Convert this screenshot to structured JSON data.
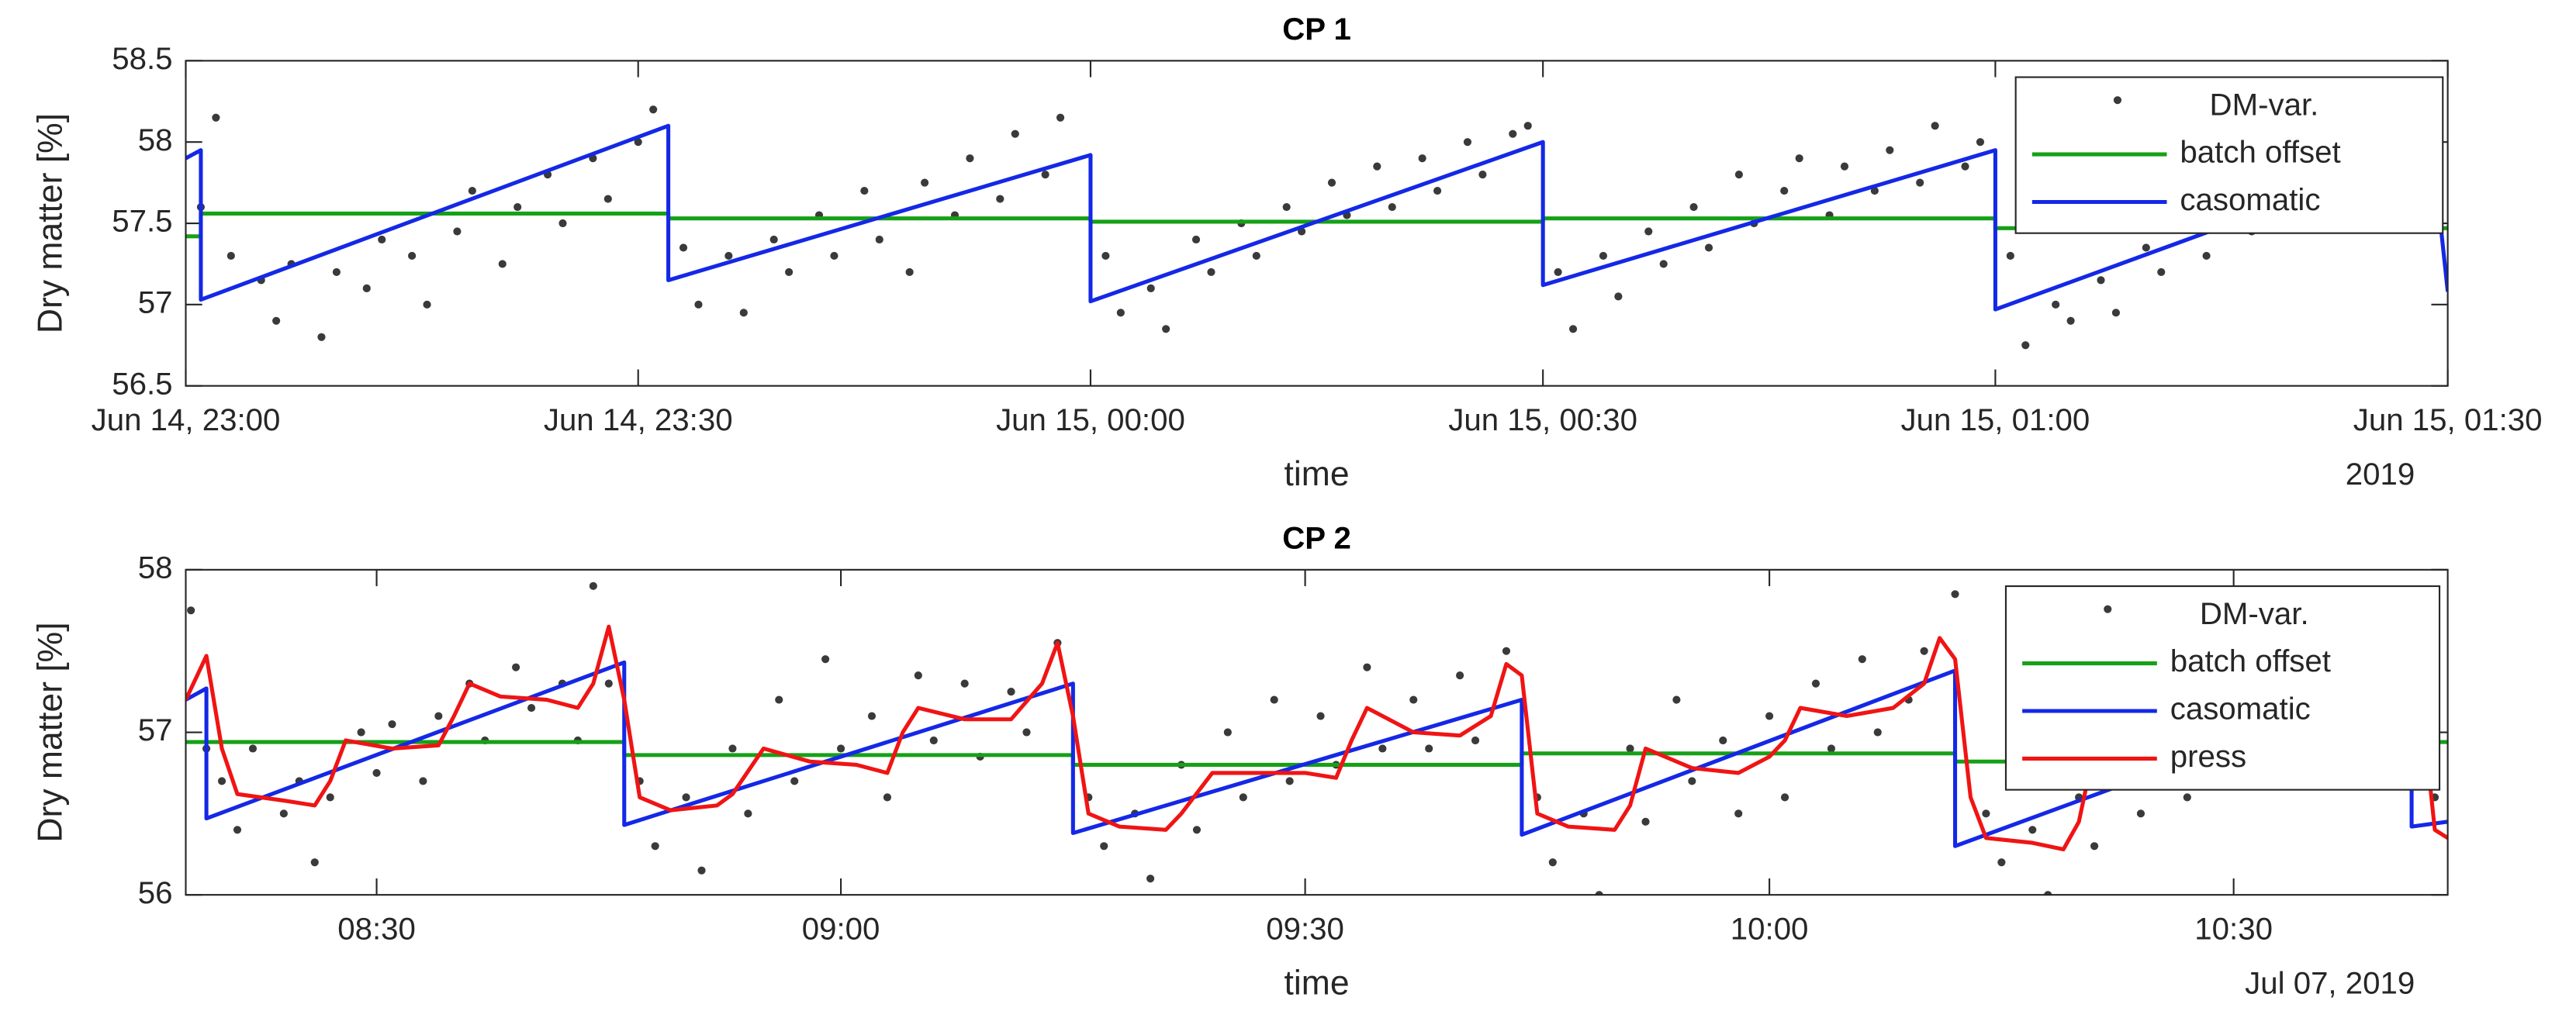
{
  "chart_data": [
    {
      "type": "timeseries",
      "title": "CP 1",
      "xlabel": "time",
      "xsublabel": "2019",
      "ylabel": "Dry matter [%]",
      "xlim": [
        "2019-06-14T23:00",
        "2019-06-15T01:30"
      ],
      "xticks": [
        {
          "value": "2019-06-14T23:00",
          "label": "Jun 14, 23:00"
        },
        {
          "value": "2019-06-14T23:30",
          "label": "Jun 14, 23:30"
        },
        {
          "value": "2019-06-15T00:00",
          "label": "Jun 15, 00:00"
        },
        {
          "value": "2019-06-15T00:30",
          "label": "Jun 15, 00:30"
        },
        {
          "value": "2019-06-15T01:00",
          "label": "Jun 15, 01:00"
        },
        {
          "value": "2019-06-15T01:30",
          "label": "Jun 15, 01:30"
        }
      ],
      "ylim": [
        56.5,
        58.5
      ],
      "yticks": [
        56.5,
        57,
        57.5,
        58,
        58.5
      ],
      "grid": false,
      "legend": "northeast",
      "series": [
        {
          "name": "DM-var.",
          "marker": "dot",
          "color": "#3a3a3a",
          "x": [
            "2019-06-14T23:01",
            "2019-06-14T23:02",
            "2019-06-14T23:03",
            "2019-06-14T23:05",
            "2019-06-14T23:06",
            "2019-06-14T23:07",
            "2019-06-14T23:09",
            "2019-06-14T23:10",
            "2019-06-14T23:12",
            "2019-06-14T23:13",
            "2019-06-14T23:15",
            "2019-06-14T23:16",
            "2019-06-14T23:18",
            "2019-06-14T23:19",
            "2019-06-14T23:21",
            "2019-06-14T23:22",
            "2019-06-14T23:24",
            "2019-06-14T23:25",
            "2019-06-14T23:27",
            "2019-06-14T23:28",
            "2019-06-14T23:30",
            "2019-06-14T23:31",
            "2019-06-14T23:33",
            "2019-06-14T23:34",
            "2019-06-14T23:36",
            "2019-06-14T23:37",
            "2019-06-14T23:39",
            "2019-06-14T23:40",
            "2019-06-14T23:42",
            "2019-06-14T23:43",
            "2019-06-14T23:45",
            "2019-06-14T23:46",
            "2019-06-14T23:48",
            "2019-06-14T23:49",
            "2019-06-14T23:51",
            "2019-06-14T23:52",
            "2019-06-14T23:54",
            "2019-06-14T23:55",
            "2019-06-14T23:57",
            "2019-06-14T23:58",
            "2019-06-15T00:01",
            "2019-06-15T00:02",
            "2019-06-15T00:04",
            "2019-06-15T00:05",
            "2019-06-15T00:07",
            "2019-06-15T00:08",
            "2019-06-15T00:10",
            "2019-06-15T00:11",
            "2019-06-15T00:13",
            "2019-06-15T00:14",
            "2019-06-15T00:16",
            "2019-06-15T00:17",
            "2019-06-15T00:19",
            "2019-06-15T00:20",
            "2019-06-15T00:22",
            "2019-06-15T00:23",
            "2019-06-15T00:25",
            "2019-06-15T00:26",
            "2019-06-15T00:28",
            "2019-06-15T00:29",
            "2019-06-15T00:31",
            "2019-06-15T00:32",
            "2019-06-15T00:34",
            "2019-06-15T00:35",
            "2019-06-15T00:37",
            "2019-06-15T00:38",
            "2019-06-15T00:40",
            "2019-06-15T00:41",
            "2019-06-15T00:43",
            "2019-06-15T00:44",
            "2019-06-15T00:46",
            "2019-06-15T00:47",
            "2019-06-15T00:49",
            "2019-06-15T00:50",
            "2019-06-15T00:52",
            "2019-06-15T00:53",
            "2019-06-15T00:55",
            "2019-06-15T00:56",
            "2019-06-15T00:58",
            "2019-06-15T00:59",
            "2019-06-15T01:01",
            "2019-06-15T01:02",
            "2019-06-15T01:04",
            "2019-06-15T01:05",
            "2019-06-15T01:07",
            "2019-06-15T01:08",
            "2019-06-15T01:10",
            "2019-06-15T01:11",
            "2019-06-15T01:13",
            "2019-06-15T01:14",
            "2019-06-15T01:16",
            "2019-06-15T01:17",
            "2019-06-15T01:19",
            "2019-06-15T01:20",
            "2019-06-15T01:22",
            "2019-06-15T01:23",
            "2019-06-15T01:25",
            "2019-06-15T01:26",
            "2019-06-15T01:28",
            "2019-06-15T01:29"
          ],
          "values": [
            57.6,
            58.15,
            57.3,
            57.15,
            56.9,
            57.25,
            56.8,
            57.2,
            57.1,
            57.4,
            57.3,
            57.0,
            57.45,
            57.7,
            57.25,
            57.6,
            57.8,
            57.5,
            57.9,
            57.65,
            58.0,
            58.2,
            57.35,
            57.0,
            57.3,
            56.95,
            57.4,
            57.2,
            57.55,
            57.3,
            57.7,
            57.4,
            57.2,
            57.75,
            57.55,
            57.9,
            57.65,
            58.05,
            57.8,
            58.15,
            57.3,
            56.95,
            57.1,
            56.85,
            57.4,
            57.2,
            57.5,
            57.3,
            57.6,
            57.45,
            57.75,
            57.55,
            57.85,
            57.6,
            57.9,
            57.7,
            58.0,
            57.8,
            58.05,
            58.1,
            57.2,
            56.85,
            57.3,
            57.05,
            57.45,
            57.25,
            57.6,
            57.35,
            57.8,
            57.5,
            57.7,
            57.9,
            57.55,
            57.85,
            57.7,
            57.95,
            57.75,
            58.1,
            57.85,
            58.0,
            57.3,
            56.75,
            57.0,
            56.9,
            57.15,
            56.95,
            57.35,
            57.2,
            57.5,
            57.3,
            57.6,
            57.45,
            57.7,
            57.5,
            57.9,
            57.75,
            58.05,
            57.9,
            58.1,
            57.55
          ]
        },
        {
          "name": "batch offset",
          "marker": "line",
          "color": "#16a016",
          "x": [
            "2019-06-14T23:00",
            "2019-06-14T23:01",
            "2019-06-14T23:01",
            "2019-06-14T23:32",
            "2019-06-14T23:32",
            "2019-06-15T00:00",
            "2019-06-15T00:00",
            "2019-06-15T00:30",
            "2019-06-15T00:30",
            "2019-06-15T01:00",
            "2019-06-15T01:00",
            "2019-06-15T01:30"
          ],
          "values": [
            57.42,
            57.42,
            57.56,
            57.56,
            57.53,
            57.53,
            57.51,
            57.51,
            57.53,
            57.53,
            57.47,
            57.47
          ]
        },
        {
          "name": "casomatic",
          "marker": "line",
          "color": "#1428e6",
          "x": [
            "2019-06-14T23:00",
            "2019-06-14T23:01",
            "2019-06-14T23:01",
            "2019-06-14T23:32",
            "2019-06-14T23:32",
            "2019-06-15T00:00",
            "2019-06-15T00:00",
            "2019-06-15T00:30",
            "2019-06-15T00:30",
            "2019-06-15T01:00",
            "2019-06-15T01:00",
            "2019-06-15T01:29",
            "2019-06-15T01:30"
          ],
          "values": [
            57.9,
            57.95,
            57.03,
            58.1,
            57.15,
            57.92,
            57.02,
            58.0,
            57.12,
            57.95,
            56.97,
            57.95,
            57.08
          ]
        }
      ]
    },
    {
      "type": "timeseries",
      "title": "CP 2",
      "xlabel": "time",
      "xsublabel": "Jul 07, 2019",
      "ylabel": "Dry matter [%]",
      "xlim": [
        "2019-07-07T08:17:40",
        "2019-07-07T10:43:50"
      ],
      "xticks": [
        {
          "value": "2019-07-07T08:30",
          "label": "08:30"
        },
        {
          "value": "2019-07-07T09:00",
          "label": "09:00"
        },
        {
          "value": "2019-07-07T09:30",
          "label": "09:30"
        },
        {
          "value": "2019-07-07T10:00",
          "label": "10:00"
        },
        {
          "value": "2019-07-07T10:30",
          "label": "10:30"
        }
      ],
      "ylim": [
        56,
        58
      ],
      "yticks": [
        56,
        57,
        58
      ],
      "grid": false,
      "legend": "northeast",
      "series": [
        {
          "name": "DM-var.",
          "marker": "dot",
          "color": "#3a3a3a",
          "x": [
            "2019-07-07T08:18",
            "2019-07-07T08:19",
            "2019-07-07T08:20",
            "2019-07-07T08:21",
            "2019-07-07T08:22",
            "2019-07-07T08:24",
            "2019-07-07T08:25",
            "2019-07-07T08:26",
            "2019-07-07T08:27",
            "2019-07-07T08:29",
            "2019-07-07T08:30",
            "2019-07-07T08:31",
            "2019-07-07T08:33",
            "2019-07-07T08:34",
            "2019-07-07T08:36",
            "2019-07-07T08:37",
            "2019-07-07T08:39",
            "2019-07-07T08:40",
            "2019-07-07T08:42",
            "2019-07-07T08:43",
            "2019-07-07T08:44",
            "2019-07-07T08:45",
            "2019-07-07T08:47",
            "2019-07-07T08:48",
            "2019-07-07T08:50",
            "2019-07-07T08:51",
            "2019-07-07T08:53",
            "2019-07-07T08:54",
            "2019-07-07T08:56",
            "2019-07-07T08:57",
            "2019-07-07T08:59",
            "2019-07-07T09:00",
            "2019-07-07T09:02",
            "2019-07-07T09:03",
            "2019-07-07T09:05",
            "2019-07-07T09:06",
            "2019-07-07T09:08",
            "2019-07-07T09:09",
            "2019-07-07T09:11",
            "2019-07-07T09:12",
            "2019-07-07T09:14",
            "2019-07-07T09:16",
            "2019-07-07T09:17",
            "2019-07-07T09:19",
            "2019-07-07T09:20",
            "2019-07-07T09:22",
            "2019-07-07T09:23",
            "2019-07-07T09:25",
            "2019-07-07T09:26",
            "2019-07-07T09:28",
            "2019-07-07T09:29",
            "2019-07-07T09:31",
            "2019-07-07T09:32",
            "2019-07-07T09:34",
            "2019-07-07T09:35",
            "2019-07-07T09:37",
            "2019-07-07T09:38",
            "2019-07-07T09:40",
            "2019-07-07T09:41",
            "2019-07-07T09:43",
            "2019-07-07T09:45",
            "2019-07-07T09:46",
            "2019-07-07T09:48",
            "2019-07-07T09:49",
            "2019-07-07T09:51",
            "2019-07-07T09:52",
            "2019-07-07T09:54",
            "2019-07-07T09:55",
            "2019-07-07T09:57",
            "2019-07-07T09:58",
            "2019-07-07T10:00",
            "2019-07-07T10:01",
            "2019-07-07T10:03",
            "2019-07-07T10:04",
            "2019-07-07T10:06",
            "2019-07-07T10:07",
            "2019-07-07T10:09",
            "2019-07-07T10:10",
            "2019-07-07T10:12",
            "2019-07-07T10:14",
            "2019-07-07T10:15",
            "2019-07-07T10:17",
            "2019-07-07T10:18",
            "2019-07-07T10:20",
            "2019-07-07T10:21",
            "2019-07-07T10:23",
            "2019-07-07T10:24",
            "2019-07-07T10:26",
            "2019-07-07T10:27",
            "2019-07-07T10:29",
            "2019-07-07T10:30",
            "2019-07-07T10:32",
            "2019-07-07T10:33",
            "2019-07-07T10:35",
            "2019-07-07T10:36",
            "2019-07-07T10:38",
            "2019-07-07T10:39",
            "2019-07-07T10:41",
            "2019-07-07T10:42",
            "2019-07-07T10:43"
          ],
          "values": [
            57.75,
            56.9,
            56.7,
            56.4,
            56.9,
            56.5,
            56.7,
            56.2,
            56.6,
            57.0,
            56.75,
            57.05,
            56.7,
            57.1,
            57.3,
            56.95,
            57.4,
            57.15,
            57.3,
            56.95,
            57.9,
            57.3,
            56.7,
            56.3,
            56.6,
            56.15,
            56.9,
            56.5,
            57.2,
            56.7,
            57.45,
            56.9,
            57.1,
            56.6,
            57.35,
            56.95,
            57.3,
            56.85,
            57.25,
            57.0,
            57.55,
            56.6,
            56.3,
            56.5,
            56.1,
            56.8,
            56.4,
            57.0,
            56.6,
            57.2,
            56.7,
            57.1,
            56.8,
            57.4,
            56.9,
            57.2,
            56.9,
            57.35,
            56.95,
            57.5,
            56.6,
            56.2,
            56.5,
            56.0,
            56.9,
            56.45,
            57.2,
            56.7,
            56.95,
            56.5,
            57.1,
            56.6,
            57.3,
            56.9,
            57.45,
            57.0,
            57.2,
            57.5,
            57.85,
            56.5,
            56.2,
            56.4,
            56.0,
            56.6,
            56.3,
            56.9,
            56.5,
            57.0,
            56.6,
            57.1,
            56.8,
            57.0,
            56.7,
            57.3,
            56.9,
            57.55,
            57.15,
            57.5,
            57.0,
            56.6
          ]
        },
        {
          "name": "batch offset",
          "marker": "line",
          "color": "#16a016",
          "x": [
            "2019-07-07T08:17:40",
            "2019-07-07T08:46",
            "2019-07-07T08:46",
            "2019-07-07T09:15",
            "2019-07-07T09:15",
            "2019-07-07T09:44",
            "2019-07-07T09:44",
            "2019-07-07T10:12",
            "2019-07-07T10:12",
            "2019-07-07T10:42",
            "2019-07-07T10:42",
            "2019-07-07T10:43:50"
          ],
          "values": [
            56.94,
            56.94,
            56.86,
            56.86,
            56.8,
            56.8,
            56.87,
            56.87,
            56.82,
            56.82,
            56.94,
            56.94
          ]
        },
        {
          "name": "casomatic",
          "marker": "line",
          "color": "#1428e6",
          "x": [
            "2019-07-07T08:17:40",
            "2019-07-07T08:19",
            "2019-07-07T08:19",
            "2019-07-07T08:46",
            "2019-07-07T08:46",
            "2019-07-07T09:15",
            "2019-07-07T09:15",
            "2019-07-07T09:44",
            "2019-07-07T09:44",
            "2019-07-07T10:12",
            "2019-07-07T10:12",
            "2019-07-07T10:41:30",
            "2019-07-07T10:41:30",
            "2019-07-07T10:43:50"
          ],
          "values": [
            57.2,
            57.27,
            56.47,
            57.43,
            56.43,
            57.3,
            56.38,
            57.2,
            56.37,
            57.38,
            56.3,
            57.33,
            56.42,
            56.45
          ]
        },
        {
          "name": "press",
          "marker": "line",
          "color": "#f01414",
          "x": [
            "2019-07-07T08:17:40",
            "2019-07-07T08:19",
            "2019-07-07T08:20",
            "2019-07-07T08:21",
            "2019-07-07T08:24",
            "2019-07-07T08:26",
            "2019-07-07T08:27",
            "2019-07-07T08:28",
            "2019-07-07T08:31",
            "2019-07-07T08:34",
            "2019-07-07T08:35",
            "2019-07-07T08:36",
            "2019-07-07T08:38",
            "2019-07-07T08:41",
            "2019-07-07T08:43",
            "2019-07-07T08:44",
            "2019-07-07T08:45",
            "2019-07-07T08:46",
            "2019-07-07T08:47",
            "2019-07-07T08:49",
            "2019-07-07T08:52",
            "2019-07-07T08:53",
            "2019-07-07T08:55",
            "2019-07-07T08:58",
            "2019-07-07T09:01",
            "2019-07-07T09:03",
            "2019-07-07T09:04",
            "2019-07-07T09:05",
            "2019-07-07T09:08",
            "2019-07-07T09:11",
            "2019-07-07T09:13",
            "2019-07-07T09:14",
            "2019-07-07T09:15",
            "2019-07-07T09:16",
            "2019-07-07T09:18",
            "2019-07-07T09:21",
            "2019-07-07T09:22",
            "2019-07-07T09:24",
            "2019-07-07T09:27",
            "2019-07-07T09:30",
            "2019-07-07T09:32",
            "2019-07-07T09:33",
            "2019-07-07T09:34",
            "2019-07-07T09:37",
            "2019-07-07T09:40",
            "2019-07-07T09:42",
            "2019-07-07T09:43",
            "2019-07-07T09:44",
            "2019-07-07T09:45",
            "2019-07-07T09:47",
            "2019-07-07T09:50",
            "2019-07-07T09:51",
            "2019-07-07T09:52",
            "2019-07-07T09:55",
            "2019-07-07T09:58",
            "2019-07-07T10:00",
            "2019-07-07T10:01",
            "2019-07-07T10:02",
            "2019-07-07T10:05",
            "2019-07-07T10:08",
            "2019-07-07T10:10",
            "2019-07-07T10:11",
            "2019-07-07T10:12",
            "2019-07-07T10:13",
            "2019-07-07T10:14",
            "2019-07-07T10:17",
            "2019-07-07T10:19",
            "2019-07-07T10:20",
            "2019-07-07T10:21",
            "2019-07-07T10:24",
            "2019-07-07T10:27",
            "2019-07-07T10:29",
            "2019-07-07T10:30",
            "2019-07-07T10:32",
            "2019-07-07T10:35",
            "2019-07-07T10:38",
            "2019-07-07T10:40",
            "2019-07-07T10:41",
            "2019-07-07T10:42",
            "2019-07-07T10:43",
            "2019-07-07T10:43:50"
          ],
          "values": [
            57.2,
            57.47,
            56.9,
            56.62,
            56.58,
            56.55,
            56.7,
            56.95,
            56.9,
            56.92,
            57.1,
            57.3,
            57.22,
            57.2,
            57.15,
            57.3,
            57.65,
            57.2,
            56.6,
            56.52,
            56.55,
            56.62,
            56.9,
            56.82,
            56.8,
            56.75,
            57.0,
            57.15,
            57.08,
            57.08,
            57.3,
            57.55,
            57.1,
            56.5,
            56.42,
            56.4,
            56.5,
            56.75,
            56.75,
            56.75,
            56.72,
            56.95,
            57.15,
            57.0,
            56.98,
            57.1,
            57.42,
            57.35,
            56.5,
            56.42,
            56.4,
            56.55,
            56.9,
            56.78,
            56.75,
            56.85,
            56.95,
            57.15,
            57.1,
            57.15,
            57.3,
            57.58,
            57.45,
            56.6,
            56.35,
            56.32,
            56.28,
            56.45,
            56.9,
            56.75,
            56.68,
            56.7,
            56.9,
            57.1,
            57.1,
            57.35,
            57.5,
            57.35,
            57.3,
            56.4,
            56.35
          ]
        }
      ]
    }
  ]
}
